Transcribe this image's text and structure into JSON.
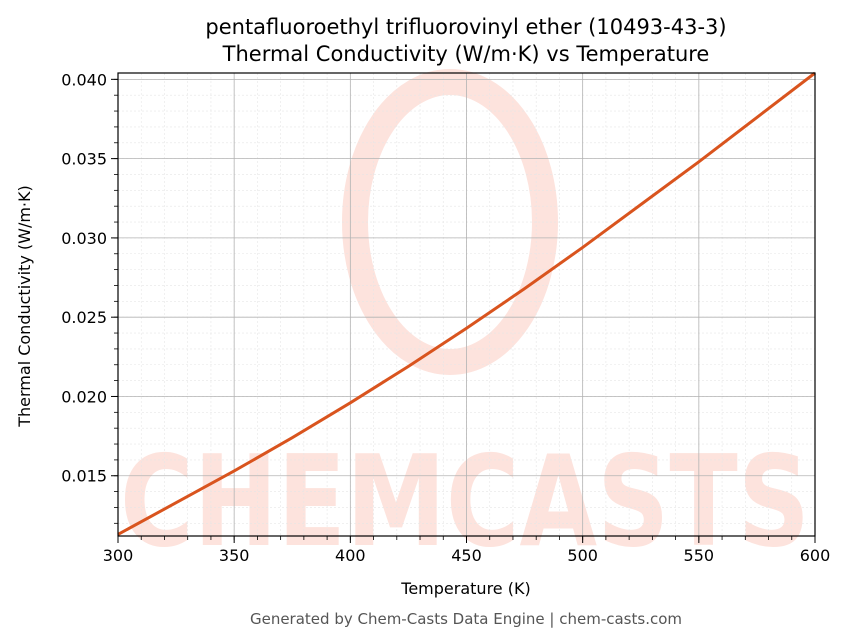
{
  "chart_data": {
    "type": "line",
    "title": "pentafluoroethyl trifluorovinyl ether (10493-43-3)",
    "subtitle": "Thermal Conductivity (W/m·K) vs Temperature",
    "xlabel": "Temperature (K)",
    "ylabel": "Thermal Conductivity (W/m·K)",
    "xlim": [
      300,
      600
    ],
    "ylim": [
      0.0112,
      0.0404
    ],
    "x_ticks": [
      300,
      350,
      400,
      450,
      500,
      550,
      600
    ],
    "y_ticks": [
      0.015,
      0.02,
      0.025,
      0.03,
      0.035,
      0.04
    ],
    "grid": true,
    "series": [
      {
        "color": "#d9541e",
        "x": [
          300,
          325,
          350,
          375,
          400,
          425,
          450,
          475,
          500,
          525,
          550,
          575,
          600
        ],
        "y": [
          0.0113,
          0.0133,
          0.0153,
          0.0174,
          0.0196,
          0.0219,
          0.0243,
          0.0268,
          0.0294,
          0.0321,
          0.0348,
          0.0376,
          0.0404
        ]
      }
    ]
  },
  "watermark": {
    "text": "CHEMCASTS",
    "color": "#fde3dd"
  },
  "footer": {
    "text": "Generated by Chem-Casts Data Engine | chem-casts.com"
  }
}
